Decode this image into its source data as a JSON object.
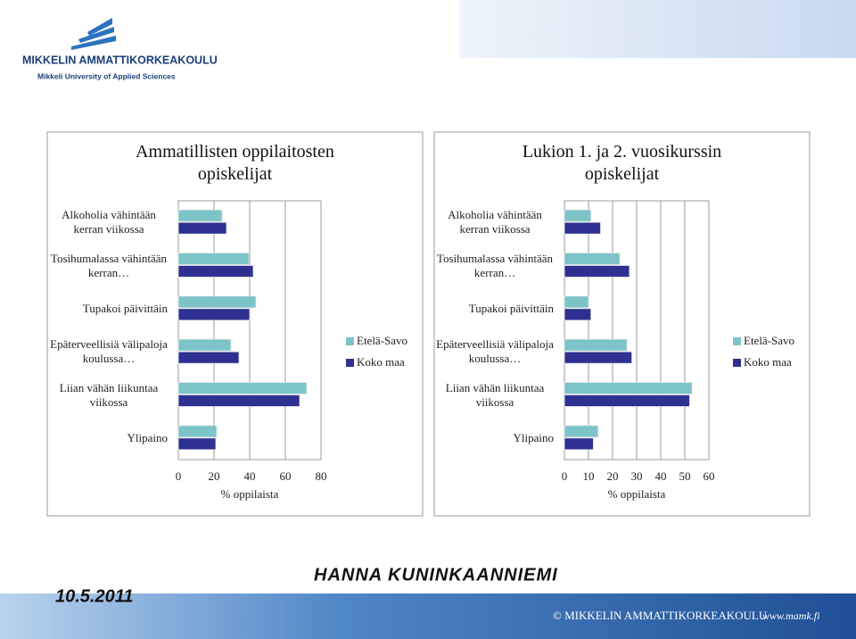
{
  "header": {
    "logo_name": "MIKKELIN AMMATTIKORKEAKOULU",
    "logo_subtitle": "Mikkeli University of Applied Sciences"
  },
  "chart_data": [
    {
      "type": "hbar",
      "title": "Ammatillisten oppilaitosten opiskelijat",
      "categories": [
        "Alkoholia vähintään kerran viikossa",
        "Tosihumalassa vähintään kerran…",
        "Tupakoi päivittäin",
        "Epäterveellisiä välipaloja koulussa…",
        "Liian vähän liikuntaa viikossa",
        "Ylipaino"
      ],
      "series": [
        {
          "name": "Etelä-Savo",
          "color": "#7cc4c8",
          "values": [
            24.5,
            39.5,
            43.5,
            29.5,
            72,
            21.5
          ]
        },
        {
          "name": "Koko maa",
          "color": "#2e3192",
          "values": [
            27,
            42,
            40,
            34,
            68,
            21
          ]
        }
      ],
      "xlim": [
        0,
        80
      ],
      "xticks": [
        0,
        20,
        40,
        60,
        80
      ],
      "x_label": "% oppilaista",
      "grid": true,
      "legend": "right"
    },
    {
      "type": "hbar",
      "title": "Lukion 1. ja 2. vuosikurssin opiskelijat",
      "categories": [
        "Alkoholia vähintään kerran viikossa",
        "Tosihumalassa vähintään kerran…",
        "Tupakoi päivittäin",
        "Epäterveellisiä välipaloja koulussa…",
        "Liian vähän liikuntaa viikossa",
        "Ylipaino"
      ],
      "series": [
        {
          "name": "Etelä-Savo",
          "color": "#7cc4c8",
          "values": [
            11,
            23,
            10,
            26,
            53,
            14
          ]
        },
        {
          "name": "Koko maa",
          "color": "#2e3192",
          "values": [
            15,
            27,
            11,
            28,
            52,
            12
          ]
        }
      ],
      "xlim": [
        0,
        60
      ],
      "xticks": [
        0,
        10,
        20,
        30,
        40,
        50,
        60
      ],
      "x_label": "% oppilaista",
      "grid": true,
      "legend": "right"
    }
  ],
  "footer": {
    "date": "10.5.2011",
    "author": "HANNA KUNINKAANNIEMI",
    "copyright": "© MIKKELIN AMMATTIKORKEAKOULU",
    "url": "www.mamk.fi"
  }
}
